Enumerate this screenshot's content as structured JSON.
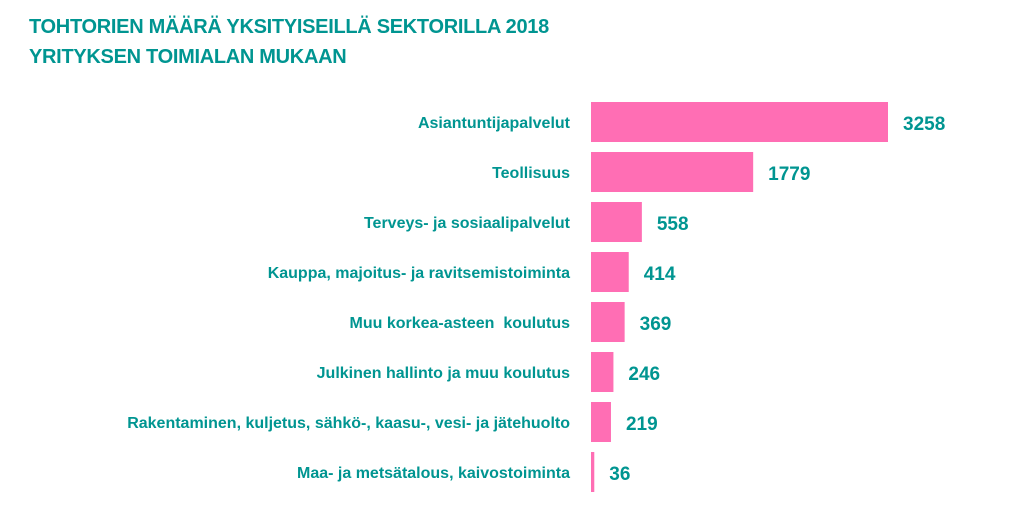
{
  "chart_data": {
    "type": "bar",
    "orientation": "horizontal",
    "title": "TOHTORIEN MÄÄRÄ YKSITYISEILLÄ SEKTORILLA 2018",
    "subtitle": "YRITYKSEN TOIMIALAN MUKAAN",
    "categories": [
      "Asiantuntijapalvelut",
      "Teollisuus",
      "Terveys- ja sosiaalipalvelut",
      "Kauppa, majoitus- ja ravitsemistoiminta",
      "Muu korkea-asteen  koulutus",
      "Julkinen hallinto ja muu koulutus",
      "Rakentaminen, kuljetus, sähkö-, kaasu-, vesi- ja jätehuolto",
      "Maa- ja metsätalous, kaivostoiminta"
    ],
    "values": [
      3258,
      1779,
      558,
      414,
      369,
      246,
      219,
      36
    ],
    "xlabel": "",
    "ylabel": "",
    "xlim": [
      0,
      3258
    ],
    "grid": false,
    "data_labels": true,
    "colors": {
      "bar": "#FF6EB4",
      "text": "#009591"
    }
  }
}
